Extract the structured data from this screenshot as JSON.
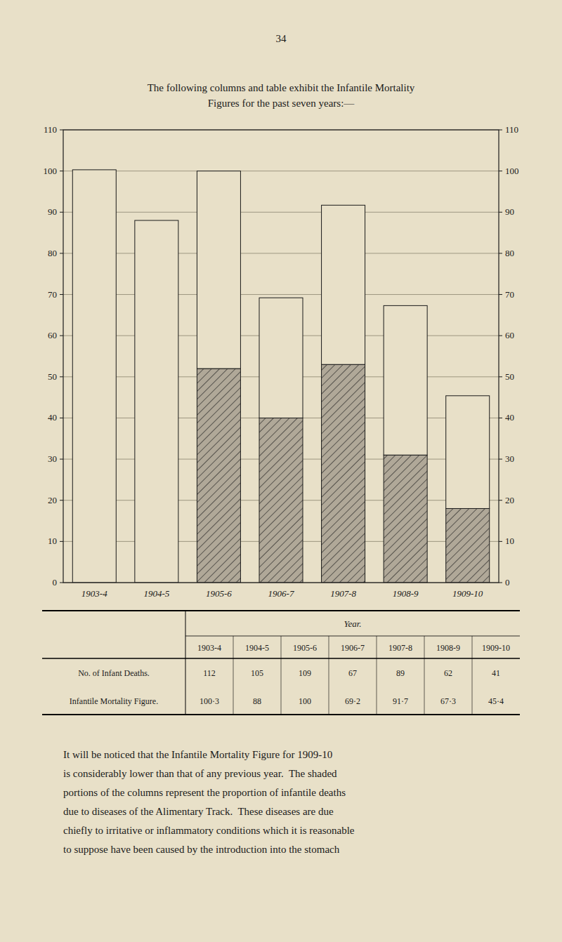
{
  "chart_data": {
    "type": "bar",
    "stacked": true,
    "page_number": "34",
    "title": "The following columns and table exhibit the Infantile Mortality",
    "subtitle": "Figures for the past seven years:—",
    "categories": [
      "1903-4",
      "1904-5",
      "1905-6",
      "1906-7",
      "1907-8",
      "1908-9",
      "1909-10"
    ],
    "series": [
      {
        "color": "#b0a898",
        "values": [
          0,
          0,
          52.0,
          40.0,
          53.0,
          31.0,
          18.0
        ]
      },
      {
        "color": "#e8e0c8",
        "values": [
          100.3,
          88.0,
          48.0,
          29.2,
          38.7,
          36.3,
          27.4
        ]
      }
    ],
    "ylim": [
      0,
      110
    ],
    "yticks": [
      0,
      10,
      20,
      30,
      40,
      50,
      60,
      70,
      80,
      90,
      100,
      110
    ],
    "grid": true,
    "table": {
      "header": "Year.",
      "rows": [
        {
          "label": "No. of Infant Deaths.",
          "values": [
            112,
            105,
            109,
            67,
            89,
            62,
            41
          ]
        },
        {
          "label": "Infantile Mortality Figure.",
          "values": [
            100.3,
            88,
            100,
            69.2,
            91.7,
            67.3,
            45.4
          ],
          "value_labels": [
            "100·3",
            "88",
            "100",
            "69·2",
            "91·7",
            "67·3",
            "45·4"
          ]
        }
      ]
    },
    "footnote": [
      "It will be noticed that the Infantile Mortality Figure for 1909-10",
      "is considerably lower than that of any previous year.  The shaded",
      "portions of the columns represent the proportion of infantile deaths",
      "due to diseases of the Alimentary Track.  These diseases are due",
      "chiefly to irritative or inflammatory conditions which it is reasonable",
      "to suppose have been caused by the introduction into the stomach"
    ]
  }
}
